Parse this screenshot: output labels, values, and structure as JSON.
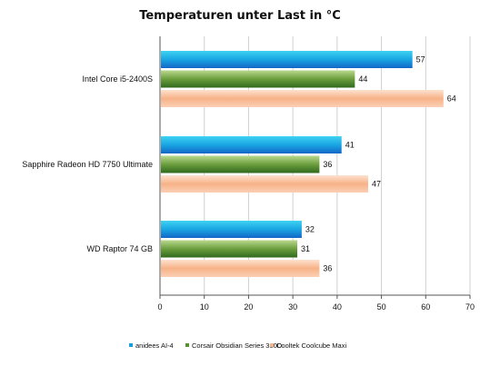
{
  "chart_data": {
    "type": "bar",
    "orientation": "horizontal",
    "title": "Temperaturen unter Last in °C",
    "categories": [
      "Intel Core i5-2400S",
      "Sapphire Radeon HD 7750 Ultimate",
      "WD Raptor 74 GB"
    ],
    "series": [
      {
        "name": "anidees AI-4",
        "values": [
          57,
          41,
          32
        ],
        "color": "#1b9ee0"
      },
      {
        "name": "Corsair Obsidian Series 350D",
        "values": [
          44,
          36,
          31
        ],
        "color": "#5a9032"
      },
      {
        "name": "Cooltek Coolcube Maxi",
        "values": [
          64,
          47,
          36
        ],
        "color": "#f6b48a"
      }
    ],
    "xlim": [
      0,
      70
    ],
    "xticks": [
      0,
      10,
      20,
      30,
      40,
      50,
      60,
      70
    ],
    "grid": true,
    "legend": "bottom"
  }
}
